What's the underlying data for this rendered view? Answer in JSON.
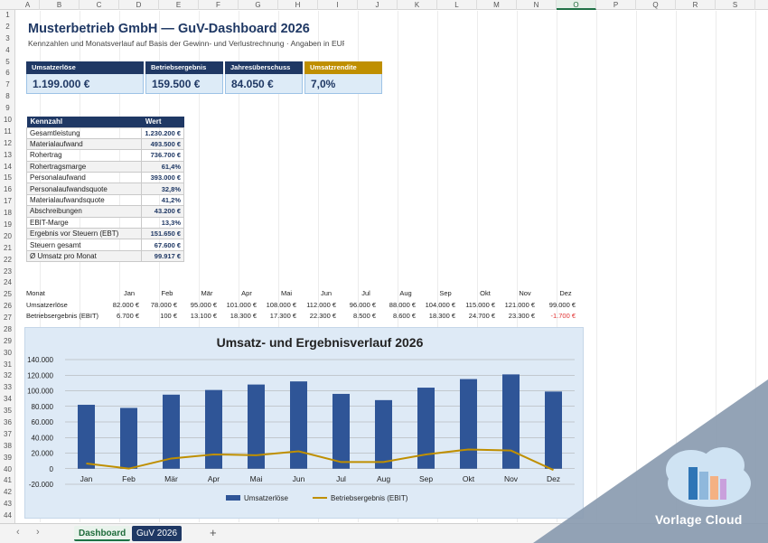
{
  "columns": [
    "A",
    "B",
    "C",
    "D",
    "E",
    "F",
    "G",
    "H",
    "I",
    "J",
    "K",
    "L",
    "M",
    "N",
    "O",
    "P",
    "Q",
    "R",
    "S"
  ],
  "active_column": "O",
  "rows": [
    "1",
    "2",
    "3",
    "4",
    "5",
    "6",
    "7",
    "8",
    "9",
    "10",
    "11",
    "12",
    "13",
    "14",
    "15",
    "16",
    "17",
    "18",
    "19",
    "20",
    "21",
    "22",
    "23",
    "24",
    "25",
    "26",
    "27",
    "28",
    "29",
    "30",
    "31",
    "32",
    "33",
    "34",
    "35",
    "36",
    "37",
    "38",
    "39",
    "40",
    "41",
    "42",
    "43",
    "44"
  ],
  "title": "Musterbetrieb GmbH — GuV-Dashboard 2026",
  "subtitle": "Kennzahlen und Monatsverlauf auf Basis der Gewinn- und Verlustrechnung · Angaben in EUR",
  "kpis": [
    {
      "label": "Umsatzerlöse",
      "value": "1.199.000 €"
    },
    {
      "label": "Betriebsergebnis (EBIT)",
      "value": "159.500 €"
    },
    {
      "label": "Jahresüberschuss",
      "value": "84.050 €"
    },
    {
      "label": "Umsatzrendite",
      "value": "7,0%"
    }
  ],
  "ktable": {
    "headers": [
      "Kennzahl",
      "Wert"
    ],
    "rows": [
      [
        "Gesamtleistung",
        "1.230.200 €"
      ],
      [
        "Materialaufwand",
        "493.500 €"
      ],
      [
        "Rohertrag",
        "736.700 €"
      ],
      [
        "Rohertragsmarge",
        "61,4%"
      ],
      [
        "Personalaufwand",
        "393.000 €"
      ],
      [
        "Personalaufwandsquote",
        "32,8%"
      ],
      [
        "Materialaufwandsquote",
        "41,2%"
      ],
      [
        "Abschreibungen",
        "43.200 €"
      ],
      [
        "EBIT-Marge",
        "13,3%"
      ],
      [
        "Ergebnis vor Steuern (EBT)",
        "151.650 €"
      ],
      [
        "Steuern gesamt",
        "67.600 €"
      ],
      [
        "Ø Umsatz pro Monat",
        "99.917 €"
      ]
    ]
  },
  "monthly": {
    "header_label": "Monat",
    "months": [
      "Jan",
      "Feb",
      "Mär",
      "Apr",
      "Mai",
      "Jun",
      "Jul",
      "Aug",
      "Sep",
      "Okt",
      "Nov",
      "Dez"
    ],
    "revenue_label": "Umsatzerlöse",
    "revenue": [
      "82.000 €",
      "78.000 €",
      "95.000 €",
      "101.000 €",
      "108.000 €",
      "112.000 €",
      "96.000 €",
      "88.000 €",
      "104.000 €",
      "115.000 €",
      "121.000 €",
      "99.000 €"
    ],
    "ebit_label": "Betriebsergebnis (EBIT)",
    "ebit": [
      "6.700 €",
      "100 €",
      "13.100 €",
      "18.300 €",
      "17.300 €",
      "22.300 €",
      "8.500 €",
      "8.600 €",
      "18.300 €",
      "24.700 €",
      "23.300 €",
      "-1.700 €"
    ]
  },
  "chart_data": {
    "type": "bar",
    "title": "Umsatz- und Ergebnisverlauf 2026",
    "categories": [
      "Jan",
      "Feb",
      "Mär",
      "Apr",
      "Mai",
      "Jun",
      "Jul",
      "Aug",
      "Sep",
      "Okt",
      "Nov",
      "Dez"
    ],
    "series": [
      {
        "name": "Umsatzerlöse",
        "type": "bar",
        "color": "#2f5597",
        "values": [
          82000,
          78000,
          95000,
          101000,
          108000,
          112000,
          96000,
          88000,
          104000,
          115000,
          121000,
          99000
        ]
      },
      {
        "name": "Betriebsergebnis (EBIT)",
        "type": "line",
        "color": "#bf8f00",
        "values": [
          6700,
          100,
          13100,
          18300,
          17300,
          22300,
          8500,
          8600,
          18300,
          24700,
          23300,
          -1700
        ]
      }
    ],
    "ylim": [
      -20000,
      140000
    ],
    "yticks": [
      "-20.000",
      "0",
      "20.000",
      "40.000",
      "60.000",
      "80.000",
      "100.000",
      "120.000",
      "140.000"
    ],
    "ytick_values": [
      -20000,
      0,
      20000,
      40000,
      60000,
      80000,
      100000,
      120000,
      140000
    ],
    "grid": true,
    "legend": "bottom"
  },
  "tabs": [
    {
      "label": "Dashboard",
      "active": true
    },
    {
      "label": "GuV 2026",
      "active": false
    }
  ],
  "add_tab": "+",
  "watermark": "Vorlage Cloud"
}
